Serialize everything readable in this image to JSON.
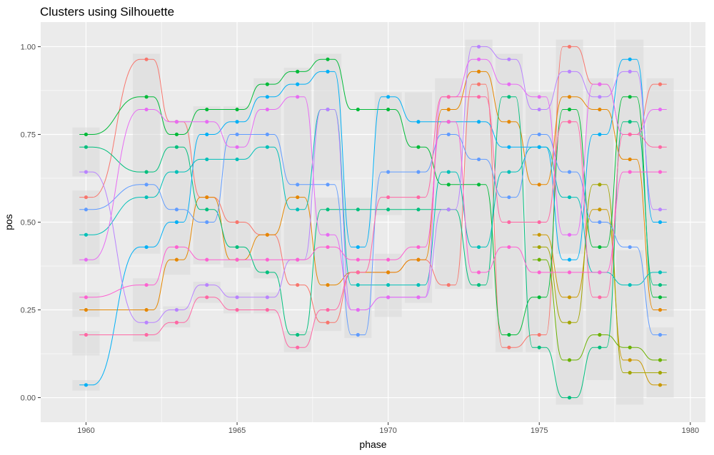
{
  "chart_data": {
    "type": "line",
    "title": "Clusters using Silhouette",
    "xlabel": "phase",
    "ylabel": "pos",
    "xlim": [
      1958.5,
      1980.5
    ],
    "ylim": [
      -0.07,
      1.07
    ],
    "x_ticks": [
      1960,
      1965,
      1970,
      1975,
      1980
    ],
    "x_tick_labels": [
      "1960",
      "1965",
      "1970",
      "1975",
      "1980"
    ],
    "y_ticks": [
      0.0,
      0.25,
      0.5,
      0.75,
      1.0
    ],
    "y_tick_labels": [
      "0.00",
      "0.25",
      "0.50",
      "0.75",
      "1.00"
    ],
    "grid": true,
    "legend": "none",
    "panel_background": "#EBEBEB",
    "gridline_color": "#FFFFFF",
    "cluster_box_color": "#D9D9D9",
    "cluster_boxes": [
      {
        "x": 1960,
        "ymin": 0.63,
        "ymax": 0.77
      },
      {
        "x": 1960,
        "ymin": 0.38,
        "ymax": 0.59
      },
      {
        "x": 1960,
        "ymin": 0.23,
        "ymax": 0.3
      },
      {
        "x": 1960,
        "ymin": 0.12,
        "ymax": 0.19
      },
      {
        "x": 1960,
        "ymin": 0.02,
        "ymax": 0.05
      },
      {
        "x": 1962,
        "ymin": 0.62,
        "ymax": 0.98
      },
      {
        "x": 1962,
        "ymin": 0.41,
        "ymax": 0.62
      },
      {
        "x": 1962,
        "ymin": 0.16,
        "ymax": 0.34
      },
      {
        "x": 1963,
        "ymin": 0.2,
        "ymax": 0.26
      },
      {
        "x": 1963,
        "ymin": 0.35,
        "ymax": 0.79
      },
      {
        "x": 1964,
        "ymin": 0.38,
        "ymax": 0.83
      },
      {
        "x": 1964,
        "ymin": 0.27,
        "ymax": 0.33
      },
      {
        "x": 1965,
        "ymin": 0.24,
        "ymax": 0.3
      },
      {
        "x": 1965,
        "ymin": 0.37,
        "ymax": 0.83
      },
      {
        "x": 1966,
        "ymin": 0.24,
        "ymax": 0.3
      },
      {
        "x": 1966,
        "ymin": 0.34,
        "ymax": 0.91
      },
      {
        "x": 1967,
        "ymin": 0.13,
        "ymax": 0.19
      },
      {
        "x": 1967,
        "ymin": 0.38,
        "ymax": 0.94
      },
      {
        "x": 1968,
        "ymin": 0.19,
        "ymax": 0.57
      },
      {
        "x": 1968,
        "ymin": 0.62,
        "ymax": 0.98
      },
      {
        "x": 1969,
        "ymin": 0.17,
        "ymax": 0.57
      },
      {
        "x": 1970,
        "ymin": 0.23,
        "ymax": 0.41
      },
      {
        "x": 1970,
        "ymin": 0.52,
        "ymax": 0.87
      },
      {
        "x": 1971,
        "ymin": 0.27,
        "ymax": 0.87
      },
      {
        "x": 1972,
        "ymin": 0.31,
        "ymax": 0.91
      },
      {
        "x": 1973,
        "ymin": 0.31,
        "ymax": 1.02
      },
      {
        "x": 1974,
        "ymin": 0.13,
        "ymax": 0.98
      },
      {
        "x": 1975,
        "ymin": 0.13,
        "ymax": 0.87
      },
      {
        "x": 1976,
        "ymin": -0.02,
        "ymax": 0.37
      },
      {
        "x": 1976,
        "ymin": 0.41,
        "ymax": 1.02
      },
      {
        "x": 1977,
        "ymin": 0.05,
        "ymax": 0.91
      },
      {
        "x": 1978,
        "ymin": -0.02,
        "ymax": 0.42
      },
      {
        "x": 1978,
        "ymin": 0.45,
        "ymax": 1.02
      },
      {
        "x": 1979,
        "ymin": 0.0,
        "ymax": 0.2
      },
      {
        "x": 1979,
        "ymin": 0.23,
        "ymax": 0.91
      }
    ],
    "series": [
      {
        "color": "#F8766D",
        "x": [
          1960,
          1962,
          1963,
          1964,
          1965,
          1966,
          1967,
          1968,
          1969,
          1970,
          1971,
          1972,
          1973,
          1974,
          1975,
          1976,
          1977,
          1978,
          1979
        ],
        "values": [
          0.571,
          0.964,
          0.786,
          0.571,
          0.5,
          0.464,
          0.321,
          0.214,
          0.357,
          0.357,
          0.393,
          0.321,
          0.893,
          0.143,
          0.179,
          1.0,
          0.893,
          0.75,
          0.893
        ]
      },
      {
        "color": "#E58700",
        "x": [
          1960,
          1962,
          1963,
          1964,
          1965,
          1966,
          1967,
          1968,
          1969,
          1970,
          1971,
          1972,
          1973,
          1974,
          1975,
          1976,
          1977,
          1978,
          1979
        ],
        "values": [
          0.25,
          0.25,
          0.393,
          0.571,
          0.393,
          0.464,
          0.571,
          0.321,
          0.357,
          0.357,
          0.393,
          0.821,
          0.929,
          0.786,
          0.607,
          0.857,
          0.821,
          0.679,
          0.25
        ]
      },
      {
        "color": "#C99800",
        "x": [
          1975,
          1976,
          1977,
          1978,
          1979
        ],
        "values": [
          0.464,
          0.286,
          0.536,
          0.107,
          0.036
        ]
      },
      {
        "color": "#A3A500",
        "x": [
          1975,
          1976,
          1977,
          1978,
          1979
        ],
        "values": [
          0.429,
          0.214,
          0.607,
          0.071,
          0.071
        ]
      },
      {
        "color": "#6BB100",
        "x": [
          1975,
          1976,
          1977,
          1978,
          1979
        ],
        "values": [
          0.393,
          0.107,
          0.179,
          0.143,
          0.107
        ]
      },
      {
        "color": "#00BA38",
        "x": [
          1960,
          1962,
          1963,
          1964,
          1965,
          1966,
          1967,
          1968,
          1969,
          1970,
          1971,
          1972,
          1973,
          1974,
          1975,
          1976,
          1977,
          1978,
          1979
        ],
        "values": [
          0.75,
          0.857,
          0.75,
          0.821,
          0.821,
          0.893,
          0.929,
          0.964,
          0.821,
          0.821,
          0.714,
          0.607,
          0.607,
          0.179,
          0.286,
          0.821,
          0.429,
          0.857,
          0.286
        ]
      },
      {
        "color": "#00BF7D",
        "x": [
          1960,
          1962,
          1963,
          1964,
          1965,
          1966,
          1967,
          1968,
          1969,
          1970,
          1971,
          1972,
          1973,
          1974,
          1975,
          1976,
          1977,
          1978,
          1979
        ],
        "values": [
          0.714,
          0.643,
          0.714,
          0.536,
          0.429,
          0.357,
          0.179,
          0.536,
          0.536,
          0.536,
          0.536,
          0.536,
          0.321,
          0.857,
          0.143,
          0.0,
          0.143,
          0.786,
          0.321
        ]
      },
      {
        "color": "#00C0B8",
        "x": [
          1960,
          1962,
          1963,
          1964,
          1965,
          1966,
          1967,
          1968,
          1969,
          1970,
          1971,
          1972,
          1973,
          1974,
          1975,
          1976,
          1977,
          1978,
          1979
        ],
        "values": [
          0.464,
          0.571,
          0.643,
          0.679,
          0.679,
          0.714,
          0.536,
          0.821,
          0.321,
          0.321,
          0.321,
          0.643,
          0.429,
          0.643,
          0.714,
          0.571,
          0.357,
          0.321,
          0.357
        ]
      },
      {
        "color": "#00B0F6",
        "x": [
          1960,
          1962,
          1963,
          1964,
          1965,
          1966,
          1967,
          1968,
          1969,
          1970,
          1971,
          1972,
          1973,
          1974,
          1975,
          1976,
          1977,
          1978,
          1979
        ],
        "values": [
          0.036,
          0.429,
          0.5,
          0.75,
          0.786,
          0.857,
          0.893,
          0.929,
          0.429,
          0.857,
          0.786,
          0.786,
          0.786,
          0.714,
          0.714,
          0.393,
          0.75,
          0.964,
          0.5
        ]
      },
      {
        "color": "#619CFF",
        "x": [
          1960,
          1962,
          1963,
          1964,
          1965,
          1966,
          1967,
          1968,
          1969,
          1970,
          1971,
          1972,
          1973,
          1974,
          1975,
          1976,
          1977,
          1978,
          1979
        ],
        "values": [
          0.536,
          0.607,
          0.536,
          0.5,
          0.75,
          0.75,
          0.607,
          0.607,
          0.179,
          0.643,
          0.643,
          0.75,
          0.679,
          0.571,
          0.75,
          0.643,
          0.5,
          0.429,
          0.179
        ]
      },
      {
        "color": "#B983FF",
        "x": [
          1960,
          1962,
          1963,
          1964,
          1965,
          1966,
          1967,
          1968,
          1969,
          1970,
          1971,
          1972,
          1973,
          1974,
          1975,
          1976,
          1977,
          1978,
          1979
        ],
        "values": [
          0.643,
          0.214,
          0.25,
          0.321,
          0.286,
          0.286,
          0.393,
          0.821,
          0.25,
          0.286,
          0.286,
          0.536,
          1.0,
          0.964,
          0.821,
          0.929,
          0.857,
          0.929,
          0.536
        ]
      },
      {
        "color": "#E76BF3",
        "x": [
          1960,
          1962,
          1963,
          1964,
          1965,
          1966,
          1967,
          1968,
          1969,
          1970,
          1971,
          1972,
          1973,
          1974,
          1975,
          1976,
          1977,
          1978,
          1979
        ],
        "values": [
          0.393,
          0.821,
          0.786,
          0.786,
          0.714,
          0.821,
          0.857,
          0.464,
          0.25,
          0.286,
          0.286,
          0.857,
          0.964,
          0.893,
          0.857,
          0.464,
          0.893,
          0.75,
          0.821
        ]
      },
      {
        "color": "#FD61D1",
        "x": [
          1960,
          1962,
          1963,
          1964,
          1965,
          1966,
          1967,
          1968,
          1969,
          1970,
          1971,
          1972,
          1973,
          1974,
          1975,
          1976,
          1977,
          1978,
          1979
        ],
        "values": [
          0.286,
          0.321,
          0.429,
          0.393,
          0.393,
          0.393,
          0.393,
          0.429,
          0.393,
          0.393,
          0.429,
          0.786,
          0.357,
          0.429,
          0.357,
          0.357,
          0.357,
          0.643,
          0.643
        ]
      },
      {
        "color": "#FF67A4",
        "x": [
          1960,
          1962,
          1963,
          1964,
          1965,
          1966,
          1967,
          1968,
          1969,
          1970,
          1971,
          1972,
          1973,
          1974,
          1975,
          1976,
          1977,
          1978,
          1979
        ],
        "values": [
          0.179,
          0.179,
          0.214,
          0.286,
          0.25,
          0.25,
          0.143,
          0.25,
          0.357,
          0.571,
          0.571,
          0.857,
          0.857,
          0.5,
          0.5,
          0.786,
          0.286,
          0.75,
          0.714
        ]
      }
    ]
  }
}
